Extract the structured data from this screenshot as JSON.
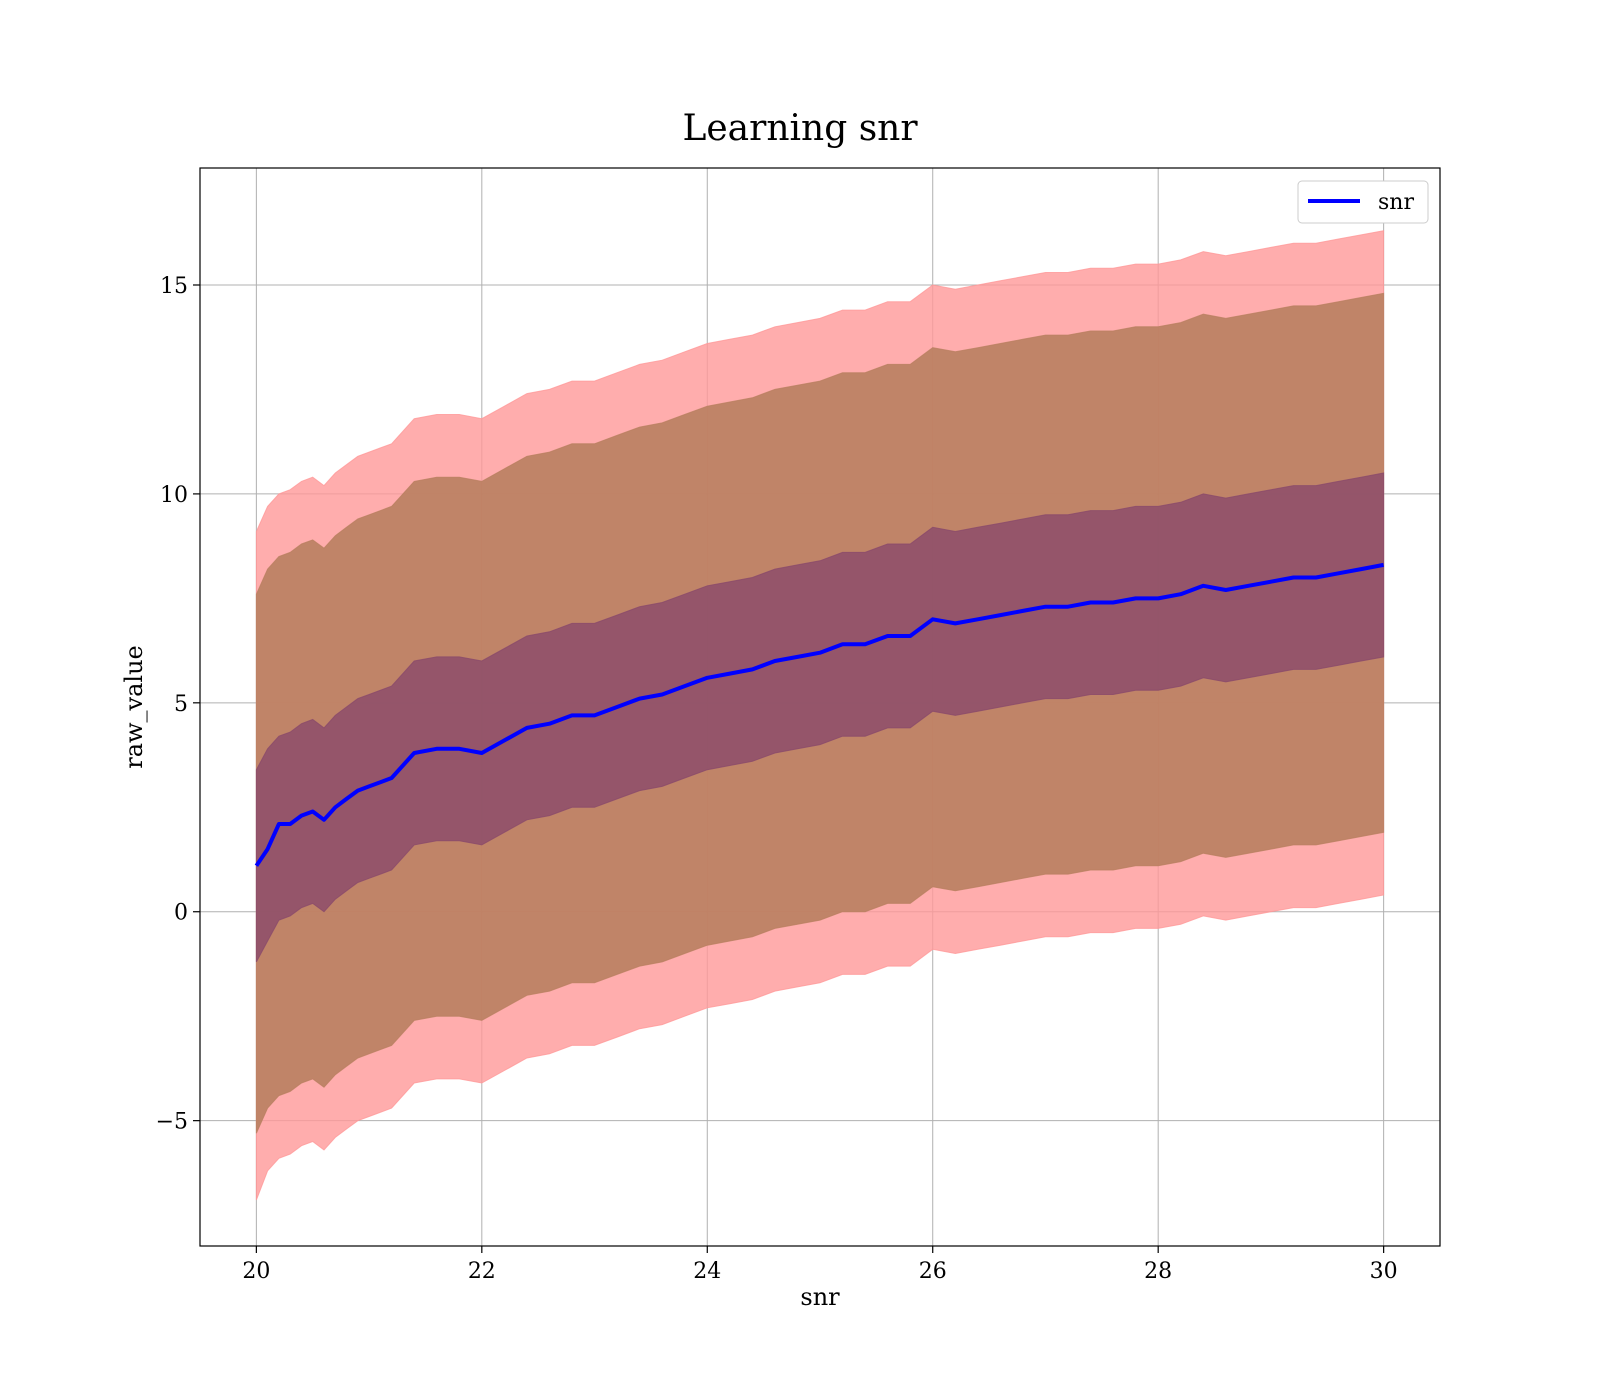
{
  "chart_data": {
    "type": "line",
    "title": "Learning snr",
    "xlabel": "snr",
    "ylabel": "raw_value",
    "xlim": [
      19.5,
      30.5
    ],
    "ylim": [
      -8,
      17.8
    ],
    "xticks": [
      20,
      22,
      24,
      26,
      28,
      30
    ],
    "xtick_labels": [
      "20",
      "22",
      "24",
      "26",
      "28",
      "30"
    ],
    "yticks": [
      -5,
      0,
      5,
      10,
      15
    ],
    "ytick_labels": [
      "−5",
      "0",
      "5",
      "10",
      "15"
    ],
    "grid": true,
    "legend": {
      "position": "top-right",
      "entries": [
        "snr"
      ]
    },
    "colors": {
      "line": "#0000ff",
      "band_outer": "#ff9999",
      "band_middle": "#b98060",
      "band_inner": "#8a4a6a"
    },
    "x": [
      20.0,
      20.1,
      20.2,
      20.3,
      20.4,
      20.5,
      20.6,
      20.7,
      20.8,
      20.9,
      21.0,
      21.2,
      21.4,
      21.6,
      21.8,
      22.0,
      22.2,
      22.4,
      22.6,
      22.8,
      23.0,
      23.2,
      23.4,
      23.6,
      23.8,
      24.0,
      24.2,
      24.4,
      24.6,
      24.8,
      25.0,
      25.2,
      25.4,
      25.6,
      25.8,
      26.0,
      26.2,
      26.4,
      26.6,
      26.8,
      27.0,
      27.2,
      27.4,
      27.6,
      27.8,
      28.0,
      28.2,
      28.4,
      28.6,
      28.8,
      29.0,
      29.2,
      29.4,
      29.6,
      29.8,
      30.0
    ],
    "series": [
      {
        "name": "snr",
        "values": [
          1.1,
          1.5,
          2.1,
          2.1,
          2.3,
          2.4,
          2.2,
          2.5,
          2.7,
          2.9,
          3.0,
          3.2,
          3.8,
          3.9,
          3.9,
          3.8,
          4.1,
          4.4,
          4.5,
          4.7,
          4.7,
          4.9,
          5.1,
          5.2,
          5.4,
          5.6,
          5.7,
          5.8,
          6.0,
          6.1,
          6.2,
          6.4,
          6.4,
          6.6,
          6.6,
          7.0,
          6.9,
          7.0,
          7.1,
          7.2,
          7.3,
          7.3,
          7.4,
          7.4,
          7.5,
          7.5,
          7.6,
          7.8,
          7.7,
          7.8,
          7.9,
          8.0,
          8.0,
          8.1,
          8.2,
          8.3
        ]
      },
      {
        "name": "upper_outer",
        "values": [
          9.1,
          9.7,
          10.0,
          10.1,
          10.3,
          10.4,
          10.2,
          10.5,
          10.7,
          10.9,
          11.0,
          11.2,
          11.8,
          11.9,
          11.9,
          11.8,
          12.1,
          12.4,
          12.5,
          12.7,
          12.7,
          12.9,
          13.1,
          13.2,
          13.4,
          13.6,
          13.7,
          13.8,
          14.0,
          14.1,
          14.2,
          14.4,
          14.4,
          14.6,
          14.6,
          15.0,
          14.9,
          15.0,
          15.1,
          15.2,
          15.3,
          15.3,
          15.4,
          15.4,
          15.5,
          15.5,
          15.6,
          15.8,
          15.7,
          15.8,
          15.9,
          16.0,
          16.0,
          16.1,
          16.2,
          16.3
        ]
      },
      {
        "name": "upper_middle",
        "values": [
          7.6,
          8.2,
          8.5,
          8.6,
          8.8,
          8.9,
          8.7,
          9.0,
          9.2,
          9.4,
          9.5,
          9.7,
          10.3,
          10.4,
          10.4,
          10.3,
          10.6,
          10.9,
          11.0,
          11.2,
          11.2,
          11.4,
          11.6,
          11.7,
          11.9,
          12.1,
          12.2,
          12.3,
          12.5,
          12.6,
          12.7,
          12.9,
          12.9,
          13.1,
          13.1,
          13.5,
          13.4,
          13.5,
          13.6,
          13.7,
          13.8,
          13.8,
          13.9,
          13.9,
          14.0,
          14.0,
          14.1,
          14.3,
          14.2,
          14.3,
          14.4,
          14.5,
          14.5,
          14.6,
          14.7,
          14.8
        ]
      },
      {
        "name": "upper_inner",
        "values": [
          3.4,
          3.9,
          4.2,
          4.3,
          4.5,
          4.6,
          4.4,
          4.7,
          4.9,
          5.1,
          5.2,
          5.4,
          6.0,
          6.1,
          6.1,
          6.0,
          6.3,
          6.6,
          6.7,
          6.9,
          6.9,
          7.1,
          7.3,
          7.4,
          7.6,
          7.8,
          7.9,
          8.0,
          8.2,
          8.3,
          8.4,
          8.6,
          8.6,
          8.8,
          8.8,
          9.2,
          9.1,
          9.2,
          9.3,
          9.4,
          9.5,
          9.5,
          9.6,
          9.6,
          9.7,
          9.7,
          9.8,
          10.0,
          9.9,
          10.0,
          10.1,
          10.2,
          10.2,
          10.3,
          10.4,
          10.5
        ]
      },
      {
        "name": "lower_inner",
        "values": [
          -1.2,
          -0.7,
          -0.2,
          -0.1,
          0.1,
          0.2,
          0.0,
          0.3,
          0.5,
          0.7,
          0.8,
          1.0,
          1.6,
          1.7,
          1.7,
          1.6,
          1.9,
          2.2,
          2.3,
          2.5,
          2.5,
          2.7,
          2.9,
          3.0,
          3.2,
          3.4,
          3.5,
          3.6,
          3.8,
          3.9,
          4.0,
          4.2,
          4.2,
          4.4,
          4.4,
          4.8,
          4.7,
          4.8,
          4.9,
          5.0,
          5.1,
          5.1,
          5.2,
          5.2,
          5.3,
          5.3,
          5.4,
          5.6,
          5.5,
          5.6,
          5.7,
          5.8,
          5.8,
          5.9,
          6.0,
          6.1
        ]
      },
      {
        "name": "lower_middle",
        "values": [
          -5.3,
          -4.7,
          -4.4,
          -4.3,
          -4.1,
          -4.0,
          -4.2,
          -3.9,
          -3.7,
          -3.5,
          -3.4,
          -3.2,
          -2.6,
          -2.5,
          -2.5,
          -2.6,
          -2.3,
          -2.0,
          -1.9,
          -1.7,
          -1.7,
          -1.5,
          -1.3,
          -1.2,
          -1.0,
          -0.8,
          -0.7,
          -0.6,
          -0.4,
          -0.3,
          -0.2,
          0.0,
          0.0,
          0.2,
          0.2,
          0.6,
          0.5,
          0.6,
          0.7,
          0.8,
          0.9,
          0.9,
          1.0,
          1.0,
          1.1,
          1.1,
          1.2,
          1.4,
          1.3,
          1.4,
          1.5,
          1.6,
          1.6,
          1.7,
          1.8,
          1.9
        ]
      },
      {
        "name": "lower_outer",
        "values": [
          -6.9,
          -6.2,
          -5.9,
          -5.8,
          -5.6,
          -5.5,
          -5.7,
          -5.4,
          -5.2,
          -5.0,
          -4.9,
          -4.7,
          -4.1,
          -4.0,
          -4.0,
          -4.1,
          -3.8,
          -3.5,
          -3.4,
          -3.2,
          -3.2,
          -3.0,
          -2.8,
          -2.7,
          -2.5,
          -2.3,
          -2.2,
          -2.1,
          -1.9,
          -1.8,
          -1.7,
          -1.5,
          -1.5,
          -1.3,
          -1.3,
          -0.9,
          -1.0,
          -0.9,
          -0.8,
          -0.7,
          -0.6,
          -0.6,
          -0.5,
          -0.5,
          -0.4,
          -0.4,
          -0.3,
          -0.1,
          -0.2,
          -0.1,
          0.0,
          0.1,
          0.1,
          0.2,
          0.3,
          0.4
        ]
      }
    ]
  }
}
